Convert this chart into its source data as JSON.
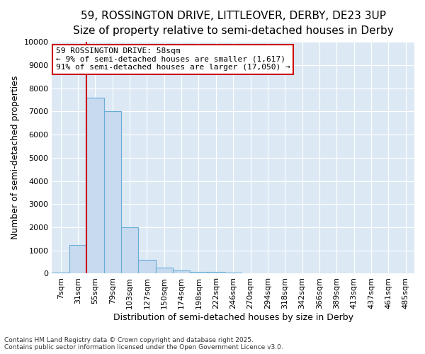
{
  "title_line1": "59, ROSSINGTON DRIVE, LITTLEOVER, DERBY, DE23 3UP",
  "title_line2": "Size of property relative to semi-detached houses in Derby",
  "xlabel": "Distribution of semi-detached houses by size in Derby",
  "ylabel": "Number of semi-detached properties",
  "footnote": "Contains HM Land Registry data © Crown copyright and database right 2025.\nContains public sector information licensed under the Open Government Licence v3.0.",
  "bar_labels": [
    "7sqm",
    "31sqm",
    "55sqm",
    "79sqm",
    "103sqm",
    "127sqm",
    "150sqm",
    "174sqm",
    "198sqm",
    "222sqm",
    "246sqm",
    "270sqm",
    "294sqm",
    "318sqm",
    "342sqm",
    "366sqm",
    "389sqm",
    "413sqm",
    "437sqm",
    "461sqm",
    "485sqm"
  ],
  "bar_values": [
    30,
    1230,
    7600,
    7000,
    2000,
    600,
    260,
    140,
    90,
    65,
    50,
    0,
    0,
    0,
    0,
    0,
    0,
    0,
    0,
    0,
    0
  ],
  "bar_color": "#c8daef",
  "bar_edge_color": "#6aaed6",
  "ylim": [
    0,
    10000
  ],
  "yticks": [
    0,
    1000,
    2000,
    3000,
    4000,
    5000,
    6000,
    7000,
    8000,
    9000,
    10000
  ],
  "property_line_x": 2.0,
  "property_line_color": "#cc0000",
  "annotation_title": "59 ROSSINGTON DRIVE: 58sqm",
  "annotation_line1": "← 9% of semi-detached houses are smaller (1,617)",
  "annotation_line2": "91% of semi-detached houses are larger (17,050) →",
  "annotation_box_color": "#cc0000",
  "plot_bg_color": "#dce9f5",
  "fig_bg_color": "#ffffff",
  "grid_color": "#ffffff",
  "title1_fontsize": 11,
  "title2_fontsize": 10,
  "axis_label_fontsize": 9,
  "tick_fontsize": 8,
  "annotation_fontsize": 8,
  "footnote_fontsize": 6.5
}
